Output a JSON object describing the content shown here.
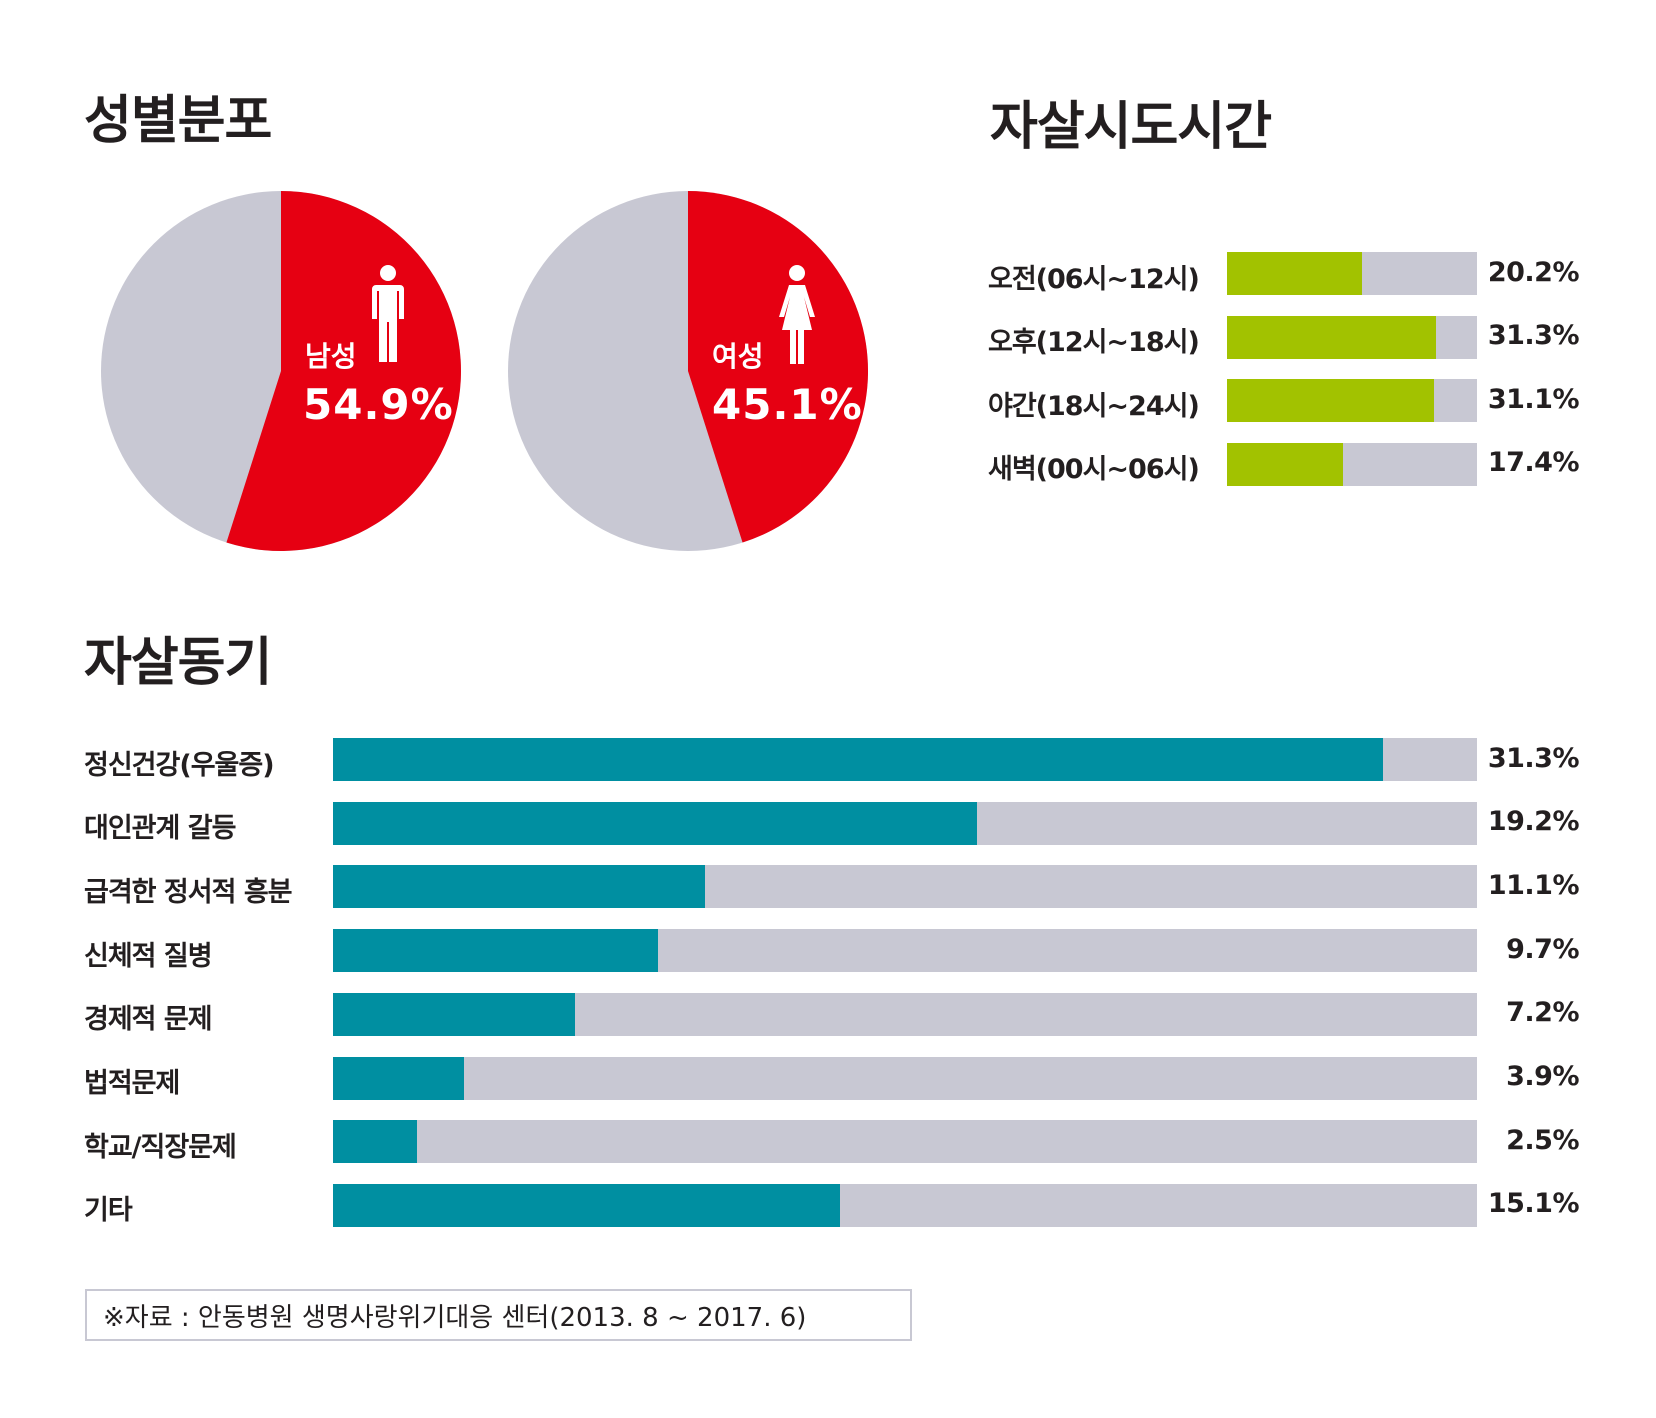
{
  "colors": {
    "male_female": "#e60012",
    "pie_rest": "#c8c8d3",
    "time_bar": "#a2c200",
    "motive_bar": "#008fa1",
    "track": "#c8c8d3",
    "text": "#231f20"
  },
  "icons": {
    "male": "male-person-icon",
    "female": "female-person-icon"
  },
  "titles": {
    "gender": "성별분포",
    "time": "자살시도시간",
    "motive": "자살동기"
  },
  "source_note": "※자료 : 안동병원 생명사랑위기대응 센터(2013. 8 ~ 2017. 6)",
  "chart_data": [
    {
      "type": "pie",
      "title": "성별분포",
      "charts": [
        {
          "label": "남성",
          "value": 54.9,
          "display": "54.9%",
          "color": "#e60012",
          "rest_color": "#c8c8d3"
        },
        {
          "label": "여성",
          "value": 45.1,
          "display": "45.1%",
          "color": "#e60012",
          "rest_color": "#c8c8d3"
        }
      ]
    },
    {
      "type": "bar",
      "orientation": "horizontal",
      "title": "자살시도시간",
      "categories": [
        "오전(06시~12시)",
        "오후(12시~18시)",
        "야간(18시~24시)",
        "새벽(00시~06시)"
      ],
      "values": [
        20.2,
        31.3,
        31.1,
        17.4
      ],
      "value_labels": [
        "20.2%",
        "31.3%",
        "31.1%",
        "17.4%"
      ],
      "xlim": [
        0,
        37.5
      ],
      "color": "#a2c200"
    },
    {
      "type": "bar",
      "orientation": "horizontal",
      "title": "자살동기",
      "categories": [
        "정신건강(우울증)",
        "대인관계 갈등",
        "급격한 정서적 흥분",
        "신체적 질병",
        "경제적 문제",
        "법적문제",
        "학교/직장문제",
        "기타"
      ],
      "values": [
        31.3,
        19.2,
        11.1,
        9.7,
        7.2,
        3.9,
        2.5,
        15.1
      ],
      "value_labels": [
        "31.3%",
        "19.2%",
        "11.1%",
        "9.7%",
        "7.2%",
        "3.9%",
        "2.5%",
        "15.1%"
      ],
      "xlim": [
        0,
        34.1
      ],
      "color": "#008fa1"
    }
  ]
}
